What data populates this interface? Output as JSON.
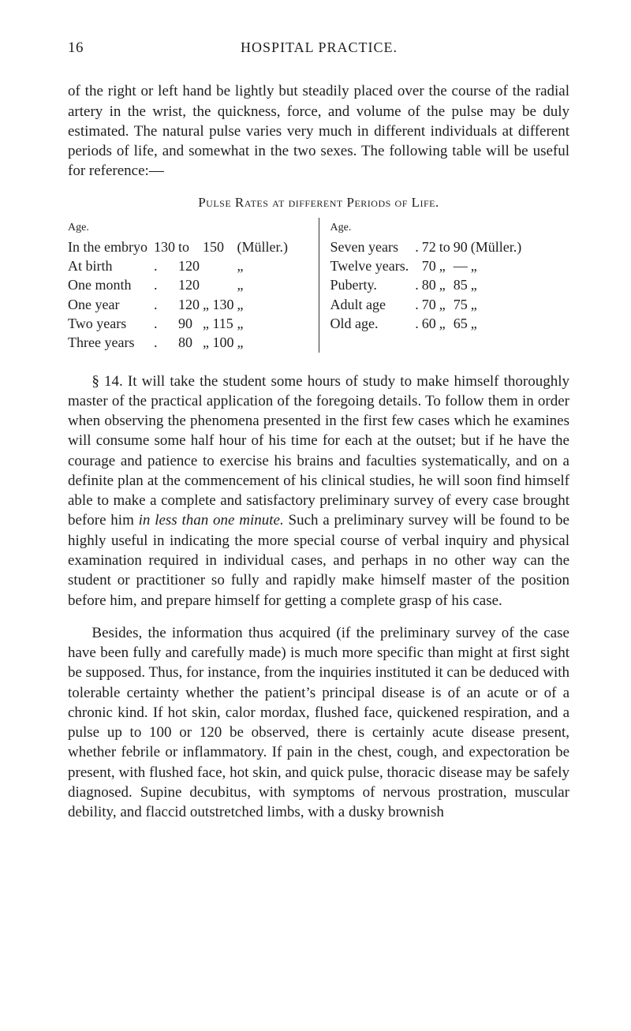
{
  "header": {
    "page_number": "16",
    "running_head": "HOSPITAL PRACTICE."
  },
  "para1": "of the right or left hand be lightly but steadily placed over the course of the radial artery in the wrist, the quickness, force, and volume of the pulse may be duly estimated. The natural pulse varies very much in different individuals at different periods of life, and somewhat in the two sexes. The follow­ing table will be useful for reference:—",
  "table_title": "Pulse Rates at different Periods of Life.",
  "left_head": "Age.",
  "right_head": "Age.",
  "left_rows": [
    [
      "In the embryo",
      "130",
      "to",
      "150",
      "(Müller.)"
    ],
    [
      "At birth",
      ".",
      "120",
      "",
      "„"
    ],
    [
      "One month",
      ".",
      "120",
      "",
      "„"
    ],
    [
      "One year",
      ".",
      "120",
      "„ 130",
      "„"
    ],
    [
      "Two years",
      ".",
      "90",
      "„ 115",
      "„"
    ],
    [
      "Three years",
      ".",
      "80",
      "„ 100",
      "„"
    ]
  ],
  "right_rows": [
    [
      "Seven years",
      ".",
      "72",
      "to",
      "90",
      "(Müller.)"
    ],
    [
      "Twelve years.",
      "",
      "70",
      "„",
      "—",
      "„"
    ],
    [
      "Puberty.",
      ".",
      "80",
      "„",
      "85",
      "„"
    ],
    [
      "Adult age",
      ".",
      "70",
      "„",
      "75",
      "„"
    ],
    [
      "Old age.",
      ".",
      "60",
      "„",
      "65",
      "„"
    ]
  ],
  "para2_lead": "§ 14.",
  "para2_a": " It will take the student some hours of study to make himself thoroughly master of the practical application of the foregoing details. To follow them in order when observing the phenomena presented in the first few cases which he ex­amines will consume some half hour of his time for each at the outset; but if he have the courage and patience to exercise his brains and faculties systematically, and on a definite plan at the commencement of his clinical studies, he will soon find himself able to make a complete and satisfactory preliminary survey of every case brought before him ",
  "para2_it": "in less than one minute.",
  "para2_b": " Such a preliminary survey will be found to be highly useful in indicating the more special course of verbal inquiry and physical examination required in individual cases, and perhaps in no other way can the student or practitioner so fully and rapidly make himself master of the position before him, and prepare himself for getting a complete grasp of his case.",
  "para3": "Besides, the information thus acquired (if the preliminary survey of the case have been fully and carefully made) is much more specific than might at first sight be supposed. Thus, for instance, from the inquiries instituted it can be deduced with tolerable certainty whether the patient’s principal disease is of an acute or of a chronic kind. If hot skin, calor mordax, flushed face, quickened respiration, and a pulse up to 100 or 120 be observed, there is certainly acute disease present, whether febrile or inflammatory. If pain in the chest, cough, and expectoration be present, with flushed face, hot skin, and quick pulse, thoracic disease may be safely diagnosed. Supine decubitus, with symptoms of nervous prostration, muscular debility, and flaccid outstretched limbs, with a dusky brownish"
}
